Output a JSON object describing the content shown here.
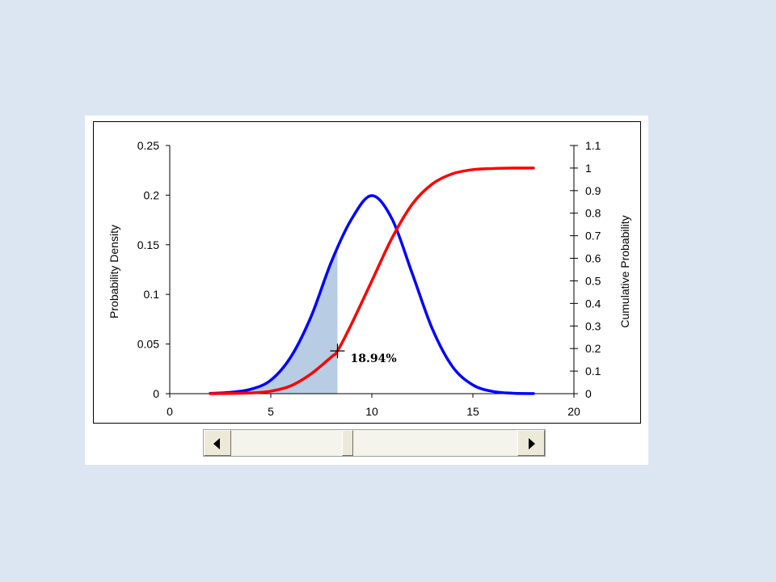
{
  "chart_data": {
    "type": "line",
    "xlim": [
      0,
      20
    ],
    "x_ticks": [
      0,
      5,
      10,
      15,
      20
    ],
    "y_left": {
      "label": "Probability Density",
      "lim": [
        0,
        0.25
      ],
      "ticks": [
        "0",
        "0.05",
        "0.1",
        "0.15",
        "0.2",
        "0.25"
      ]
    },
    "y_right": {
      "label": "Cumulative Probability",
      "lim": [
        0,
        1.1
      ],
      "ticks": [
        "0",
        "0.1",
        "0.2",
        "0.3",
        "0.4",
        "0.5",
        "0.6",
        "0.7",
        "0.8",
        "0.9",
        "1",
        "1.1"
      ]
    },
    "series": [
      {
        "axis": "left",
        "color": "#0000ff",
        "x": [
          2,
          3,
          4,
          5,
          6,
          7,
          8,
          9,
          10,
          11,
          12,
          13,
          14,
          15,
          16,
          17,
          18
        ],
        "y": [
          0.0003,
          0.0013,
          0.0044,
          0.0136,
          0.0373,
          0.078,
          0.133,
          0.176,
          0.1995,
          0.176,
          0.121,
          0.065,
          0.027,
          0.0088,
          0.0022,
          0.0004,
          0.0001
        ]
      },
      {
        "axis": "right",
        "color": "#ff0000",
        "x": [
          2,
          3,
          4,
          5,
          6,
          7,
          8,
          8.3,
          9,
          10,
          11,
          12,
          13,
          14,
          15,
          16,
          17,
          18
        ],
        "y": [
          0.0,
          0.001,
          0.003,
          0.011,
          0.035,
          0.088,
          0.163,
          0.1894,
          0.31,
          0.5,
          0.69,
          0.84,
          0.93,
          0.975,
          0.993,
          0.998,
          1.0,
          1.0
        ]
      }
    ],
    "shaded_area": {
      "x_from": 2,
      "x_to": 8.3,
      "color": "#b8cce4"
    },
    "marker": {
      "x": 8.3,
      "y_right": 0.1894,
      "label": "18.94%"
    },
    "grid": false,
    "legend": "none"
  },
  "scrollbar": {
    "value_fraction": 0.4
  },
  "colors": {
    "background": "#dce6f2",
    "density": "#0000ff",
    "cumulative": "#ff0000",
    "shade": "#b8cce4"
  },
  "icons": {
    "left": "arrow-left-icon",
    "right": "arrow-right-icon"
  }
}
